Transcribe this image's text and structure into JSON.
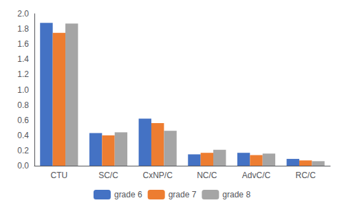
{
  "chart_data": {
    "type": "bar",
    "categories": [
      "CTU",
      "SC/C",
      "CxNP/C",
      "NC/C",
      "AdvC/C",
      "RC/C"
    ],
    "series": [
      {
        "name": "grade 6",
        "color": "#4472C4",
        "values": [
          1.88,
          0.43,
          0.62,
          0.15,
          0.17,
          0.09
        ]
      },
      {
        "name": "grade 7",
        "color": "#ED7D31",
        "values": [
          1.75,
          0.4,
          0.56,
          0.17,
          0.14,
          0.07
        ]
      },
      {
        "name": "grade 8",
        "color": "#A5A5A5",
        "values": [
          1.87,
          0.44,
          0.46,
          0.21,
          0.16,
          0.06
        ]
      }
    ],
    "ylim": [
      0,
      2.0
    ],
    "yticks": [
      {
        "value": 0,
        "label": "0.0"
      },
      0.2,
      0.4,
      0.6,
      0.8,
      {
        "value": 1.0,
        "label": "1.0"
      },
      1.2,
      1.4,
      1.6,
      1.8,
      {
        "value": 2.0,
        "label": "2.0"
      }
    ],
    "grid": false,
    "legend": "bottom"
  }
}
